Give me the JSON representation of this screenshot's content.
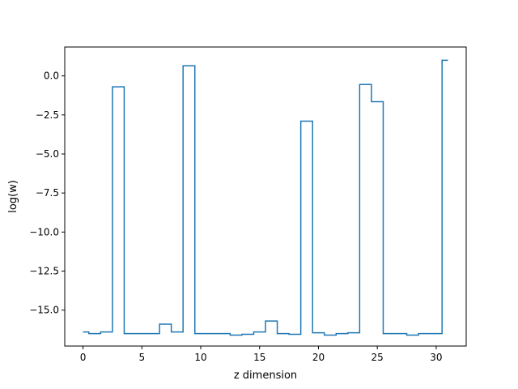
{
  "chart_data": {
    "type": "line",
    "drawstyle": "steps-mid",
    "xlabel": "z dimension",
    "ylabel": "log(w)",
    "xlim": [
      -1.55,
      32.55
    ],
    "ylim": [
      -17.3,
      1.85
    ],
    "xticks": [
      0,
      5,
      10,
      15,
      20,
      25,
      30
    ],
    "xtick_labels": [
      "0",
      "5",
      "10",
      "15",
      "20",
      "25",
      "30"
    ],
    "yticks": [
      -15.0,
      -12.5,
      -10.0,
      -7.5,
      -5.0,
      -2.5,
      0.0
    ],
    "ytick_labels": [
      "−15.0",
      "−12.5",
      "−10.0",
      "−7.5",
      "−5.0",
      "−2.5",
      "0.0"
    ],
    "grid": false,
    "legend": "none",
    "series_color": "#1f77b4",
    "x": [
      0,
      1,
      2,
      3,
      4,
      5,
      6,
      7,
      8,
      9,
      10,
      11,
      12,
      13,
      14,
      15,
      16,
      17,
      18,
      19,
      20,
      21,
      22,
      23,
      24,
      25,
      26,
      27,
      28,
      29,
      30,
      31
    ],
    "values": [
      -16.4,
      -16.5,
      -16.4,
      -0.7,
      -16.5,
      -16.5,
      -16.5,
      -15.9,
      -16.4,
      0.65,
      -16.5,
      -16.5,
      -16.5,
      -16.6,
      -16.55,
      -16.4,
      -15.7,
      -16.5,
      -16.55,
      -2.9,
      -16.45,
      -16.6,
      -16.5,
      -16.45,
      -0.55,
      -1.65,
      -16.5,
      -16.5,
      -16.6,
      -16.5,
      -16.5,
      1.0
    ]
  }
}
